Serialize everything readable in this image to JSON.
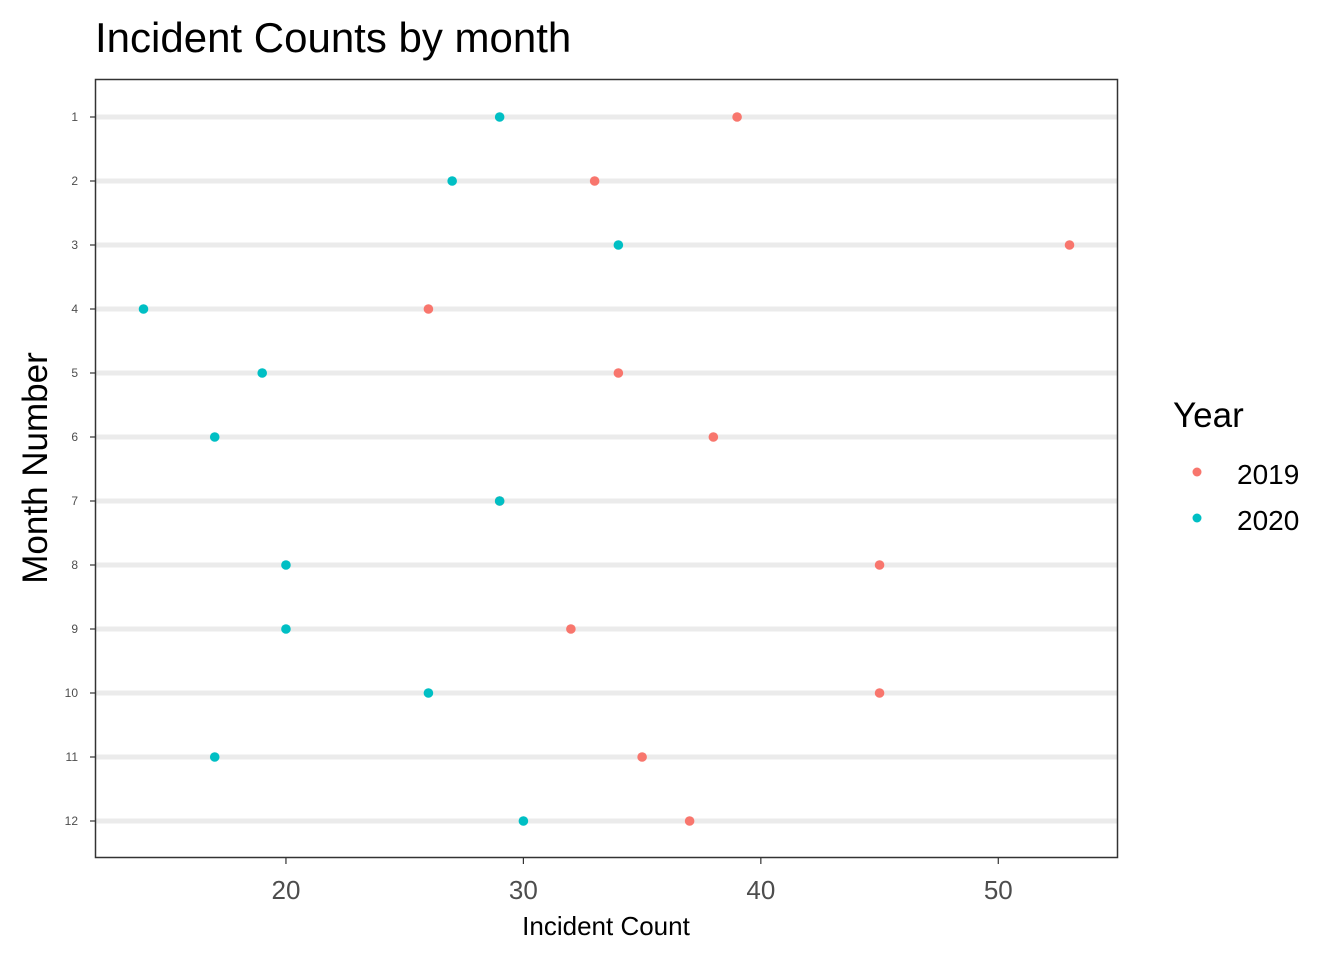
{
  "chart_data": {
    "type": "scatter",
    "title": "Incident Counts by month",
    "xlabel": "Incident Count",
    "ylabel": "Month Number",
    "xlim": [
      12,
      55
    ],
    "x_ticks": [
      20,
      30,
      40,
      50
    ],
    "categories": [
      "1",
      "2",
      "3",
      "4",
      "5",
      "6",
      "7",
      "8",
      "9",
      "10",
      "11",
      "12"
    ],
    "grid": "horizontal",
    "legend": {
      "title": "Year",
      "position": "right"
    },
    "series": [
      {
        "name": "2019",
        "color": "#F8766D",
        "values": [
          39,
          33,
          53,
          26,
          34,
          38,
          29,
          45,
          32,
          45,
          35,
          37
        ]
      },
      {
        "name": "2020",
        "color": "#00BFC4",
        "values": [
          29,
          27,
          34,
          14,
          19,
          17,
          29,
          20,
          20,
          26,
          17,
          30
        ]
      }
    ]
  }
}
